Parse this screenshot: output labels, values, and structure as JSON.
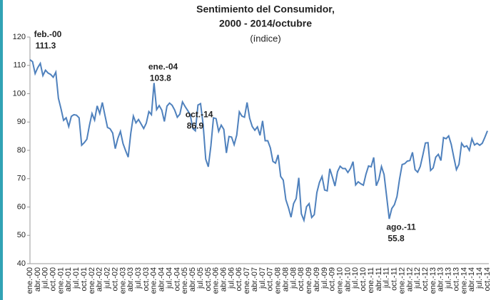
{
  "chart_data": {
    "type": "line",
    "title": "Sentimiento del Consumidor,",
    "subtitle_line2": "2000 - 2014/octubre",
    "subtitle": "(índice)",
    "categories": [
      "ene.-00",
      null,
      null,
      "abr.-00",
      null,
      null,
      "jul.-00",
      null,
      null,
      "oct.-00",
      null,
      null,
      "ene.-01",
      null,
      null,
      "abr.-01",
      null,
      null,
      "jul.-01",
      null,
      null,
      "oct.-01",
      null,
      null,
      "ene.-02",
      null,
      null,
      "abr.-02",
      null,
      null,
      "jul.-02",
      null,
      null,
      "oct.-02",
      null,
      null,
      "ene.-03",
      null,
      null,
      "abr.-03",
      null,
      null,
      "jul.-03",
      null,
      null,
      "oct.-03",
      null,
      null,
      "ene.-04",
      null,
      null,
      "abr.-04",
      null,
      null,
      "jul.-04",
      null,
      null,
      "oct.-04",
      null,
      null,
      "ene.-05",
      null,
      null,
      "abr.-05",
      null,
      null,
      "jul.-05",
      null,
      null,
      "oct.-05",
      null,
      null,
      "ene.-06",
      null,
      null,
      "abr.-06",
      null,
      null,
      "jul.-06",
      null,
      null,
      "oct.-06",
      null,
      null,
      "ene.-07",
      null,
      null,
      "abr.-07",
      null,
      null,
      "jul.-07",
      null,
      null,
      "oct.-07",
      null,
      null,
      "ene.-08",
      null,
      null,
      "abr.-08",
      null,
      null,
      "jul.-08",
      null,
      null,
      "oct.-08",
      null,
      null,
      "ene.-09",
      null,
      null,
      "abr.-09",
      null,
      null,
      "jul.-09",
      null,
      null,
      "oct.-09",
      null,
      null,
      "ene.-10",
      null,
      null,
      "abr.-10",
      null,
      null,
      "jul.-10",
      null,
      null,
      "oct.-10",
      null,
      null,
      "ene.-11",
      null,
      null,
      "abr.-11",
      null,
      null,
      "jul.-11",
      null,
      null,
      "oct.-11",
      null,
      null,
      "ene.-12",
      null,
      null,
      "abr.-12",
      null,
      null,
      "jul.-12",
      null,
      null,
      "oct.-12",
      null,
      null,
      "ene.-13",
      null,
      null,
      "abr.-13",
      null,
      null,
      "jul.-13",
      null,
      null,
      "oct.-13",
      null,
      null,
      "ene.-14",
      null,
      null,
      "abr.-14",
      null,
      null,
      "jul.-14",
      null,
      null,
      "oct.-14"
    ],
    "series": [
      {
        "name": "Sentimiento del Consumidor",
        "color": "#4f81bd",
        "values": [
          112.0,
          111.3,
          107.1,
          109.2,
          110.7,
          106.4,
          108.3,
          107.3,
          106.8,
          105.8,
          107.6,
          98.4,
          94.7,
          90.6,
          91.5,
          88.4,
          92.0,
          92.6,
          92.4,
          91.5,
          81.8,
          82.7,
          83.9,
          88.8,
          93.0,
          90.7,
          95.7,
          93.0,
          96.9,
          92.4,
          88.1,
          87.6,
          86.1,
          80.6,
          84.2,
          86.7,
          82.4,
          79.9,
          77.6,
          86.0,
          92.1,
          89.7,
          90.9,
          89.3,
          87.7,
          89.6,
          93.7,
          92.6,
          103.8,
          94.4,
          95.8,
          94.2,
          90.2,
          95.6,
          96.7,
          95.9,
          94.2,
          91.7,
          92.8,
          97.1,
          95.5,
          94.1,
          92.6,
          87.7,
          86.9,
          96.0,
          96.5,
          89.1,
          76.9,
          74.2,
          81.6,
          91.5,
          91.2,
          86.7,
          88.9,
          87.4,
          79.1,
          84.9,
          84.7,
          82.0,
          85.4,
          93.6,
          92.1,
          91.7,
          96.9,
          91.3,
          88.4,
          87.1,
          88.3,
          85.3,
          90.4,
          83.4,
          83.4,
          80.9,
          76.1,
          75.5,
          78.4,
          70.8,
          69.5,
          62.6,
          59.8,
          56.4,
          61.2,
          63.0,
          70.3,
          57.6,
          55.3,
          60.1,
          61.2,
          56.3,
          57.3,
          65.1,
          68.7,
          70.8,
          66.0,
          65.7,
          73.5,
          70.6,
          67.4,
          72.5,
          74.4,
          73.6,
          73.6,
          72.2,
          73.6,
          76.0,
          67.8,
          68.9,
          68.2,
          67.7,
          71.6,
          74.5,
          74.2,
          77.5,
          67.5,
          69.8,
          74.3,
          71.5,
          63.7,
          55.8,
          59.5,
          60.8,
          63.7,
          69.9,
          75.0,
          75.3,
          76.2,
          76.4,
          79.3,
          73.2,
          72.3,
          74.3,
          78.3,
          82.6,
          82.7,
          72.9,
          73.8,
          77.6,
          78.6,
          76.4,
          84.5,
          84.1,
          85.1,
          82.1,
          77.5,
          73.2,
          75.1,
          82.5,
          81.2,
          81.6,
          80.0,
          84.1,
          81.9,
          82.5,
          81.8,
          82.5,
          84.6,
          86.9
        ]
      }
    ],
    "annotations": [
      {
        "text": "feb.-00",
        "value": 111.3
      },
      {
        "text": "ene.-04",
        "value": 103.8
      },
      {
        "text": "ago.-11",
        "value": 55.8
      },
      {
        "text": "oct.-14",
        "value": 86.9
      }
    ],
    "ylim": [
      40,
      120
    ],
    "yticks": [
      40,
      50,
      60,
      70,
      80,
      90,
      100,
      110,
      120
    ],
    "grid": false
  }
}
